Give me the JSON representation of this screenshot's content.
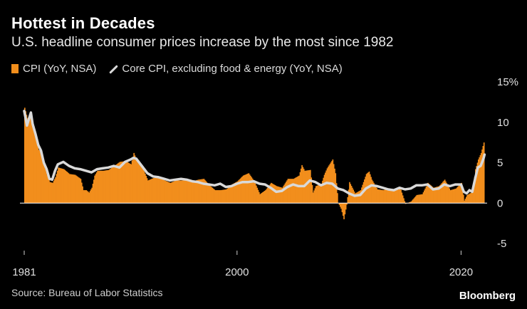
{
  "title": "Hottest in Decades",
  "subtitle": "U.S. headline consumer prices increase by the most since 1982",
  "legend": {
    "cpi": "CPI (YoY, NSA)",
    "core": "Core CPI, excluding food & energy (YoY, NSA)"
  },
  "source": "Source: Bureau of Labor Statistics",
  "brand": "Bloomberg",
  "colors": {
    "cpi": "#f28e1c",
    "core": "#d9d9d9",
    "background": "#000000",
    "axis": "#ffffff"
  },
  "chart_data": {
    "type": "bar",
    "x_unit": "year",
    "xlim": [
      1981,
      2022.2
    ],
    "ylim": [
      -5,
      15
    ],
    "y_ticks": [
      15,
      10,
      5,
      0,
      -5
    ],
    "y_tick_labels": [
      "15%",
      "10",
      "5",
      "0",
      "-5"
    ],
    "x_ticks": [
      1981,
      2000,
      2020
    ],
    "x_tick_labels": [
      "1981",
      "2000",
      "2020"
    ],
    "y_axis_side": "right",
    "grid": false,
    "series": [
      {
        "name": "CPI (YoY, NSA)",
        "type": "bar",
        "points": [
          [
            1981.0,
            11.8
          ],
          [
            1981.25,
            10.5
          ],
          [
            1981.5,
            10.8
          ],
          [
            1981.75,
            9.6
          ],
          [
            1982.0,
            8.4
          ],
          [
            1982.25,
            6.6
          ],
          [
            1982.5,
            6.3
          ],
          [
            1982.75,
            4.6
          ],
          [
            1983.0,
            3.5
          ],
          [
            1983.25,
            2.6
          ],
          [
            1983.5,
            2.5
          ],
          [
            1983.75,
            3.2
          ],
          [
            1984.0,
            4.4
          ],
          [
            1984.5,
            4.2
          ],
          [
            1985.0,
            3.6
          ],
          [
            1985.5,
            3.5
          ],
          [
            1986.0,
            3.0
          ],
          [
            1986.25,
            1.6
          ],
          [
            1986.5,
            1.6
          ],
          [
            1986.75,
            1.3
          ],
          [
            1987.0,
            1.9
          ],
          [
            1987.25,
            3.4
          ],
          [
            1987.5,
            4.0
          ],
          [
            1988.0,
            4.0
          ],
          [
            1988.5,
            4.1
          ],
          [
            1989.0,
            4.6
          ],
          [
            1989.5,
            5.1
          ],
          [
            1990.0,
            5.2
          ],
          [
            1990.5,
            4.8
          ],
          [
            1990.75,
            6.2
          ],
          [
            1991.0,
            5.3
          ],
          [
            1991.5,
            4.5
          ],
          [
            1992.0,
            2.8
          ],
          [
            1992.5,
            3.1
          ],
          [
            1993.0,
            3.2
          ],
          [
            1993.5,
            2.8
          ],
          [
            1994.0,
            2.5
          ],
          [
            1994.5,
            2.8
          ],
          [
            1995.0,
            2.8
          ],
          [
            1995.5,
            2.8
          ],
          [
            1996.0,
            2.7
          ],
          [
            1996.5,
            2.9
          ],
          [
            1997.0,
            3.0
          ],
          [
            1997.5,
            2.2
          ],
          [
            1998.0,
            1.6
          ],
          [
            1998.5,
            1.6
          ],
          [
            1999.0,
            1.7
          ],
          [
            1999.5,
            2.3
          ],
          [
            2000.0,
            2.7
          ],
          [
            2000.5,
            3.4
          ],
          [
            2001.0,
            3.7
          ],
          [
            2001.5,
            2.7
          ],
          [
            2001.75,
            1.9
          ],
          [
            2002.0,
            1.1
          ],
          [
            2002.5,
            1.6
          ],
          [
            2003.0,
            2.5
          ],
          [
            2003.5,
            2.1
          ],
          [
            2004.0,
            1.9
          ],
          [
            2004.5,
            3.0
          ],
          [
            2005.0,
            3.0
          ],
          [
            2005.5,
            3.4
          ],
          [
            2005.75,
            4.7
          ],
          [
            2006.0,
            4.0
          ],
          [
            2006.5,
            4.1
          ],
          [
            2006.75,
            1.3
          ],
          [
            2007.0,
            2.1
          ],
          [
            2007.5,
            2.4
          ],
          [
            2007.75,
            3.5
          ],
          [
            2008.0,
            4.3
          ],
          [
            2008.5,
            5.4
          ],
          [
            2008.75,
            3.7
          ],
          [
            2009.0,
            0.0
          ],
          [
            2009.25,
            -0.7
          ],
          [
            2009.5,
            -2.0
          ],
          [
            2009.75,
            -0.2
          ],
          [
            2010.0,
            2.6
          ],
          [
            2010.5,
            1.2
          ],
          [
            2011.0,
            1.6
          ],
          [
            2011.5,
            3.6
          ],
          [
            2011.75,
            3.9
          ],
          [
            2012.0,
            2.9
          ],
          [
            2012.5,
            1.7
          ],
          [
            2013.0,
            1.6
          ],
          [
            2013.5,
            1.8
          ],
          [
            2014.0,
            1.6
          ],
          [
            2014.5,
            2.0
          ],
          [
            2015.0,
            -0.1
          ],
          [
            2015.5,
            0.2
          ],
          [
            2016.0,
            1.0
          ],
          [
            2016.5,
            1.1
          ],
          [
            2017.0,
            2.5
          ],
          [
            2017.5,
            1.9
          ],
          [
            2018.0,
            2.1
          ],
          [
            2018.5,
            2.9
          ],
          [
            2019.0,
            1.6
          ],
          [
            2019.5,
            1.8
          ],
          [
            2020.0,
            2.5
          ],
          [
            2020.25,
            0.3
          ],
          [
            2020.5,
            1.0
          ],
          [
            2020.75,
            1.2
          ],
          [
            2021.0,
            1.4
          ],
          [
            2021.25,
            4.2
          ],
          [
            2021.5,
            5.4
          ],
          [
            2021.75,
            6.2
          ],
          [
            2022.0,
            7.5
          ]
        ]
      },
      {
        "name": "Core CPI, excluding food & energy (YoY, NSA)",
        "type": "line",
        "points": [
          [
            1981.0,
            11.4
          ],
          [
            1981.25,
            9.6
          ],
          [
            1981.5,
            10.8
          ],
          [
            1981.6,
            11.2
          ],
          [
            1981.75,
            9.8
          ],
          [
            1982.0,
            8.6
          ],
          [
            1982.25,
            7.2
          ],
          [
            1982.5,
            6.5
          ],
          [
            1982.75,
            5.0
          ],
          [
            1983.0,
            4.2
          ],
          [
            1983.25,
            3.0
          ],
          [
            1983.5,
            2.9
          ],
          [
            1983.75,
            4.0
          ],
          [
            1984.0,
            4.8
          ],
          [
            1984.5,
            5.1
          ],
          [
            1985.0,
            4.6
          ],
          [
            1985.5,
            4.3
          ],
          [
            1986.0,
            4.2
          ],
          [
            1986.5,
            4.0
          ],
          [
            1987.0,
            3.8
          ],
          [
            1987.5,
            4.2
          ],
          [
            1988.0,
            4.3
          ],
          [
            1988.5,
            4.4
          ],
          [
            1989.0,
            4.6
          ],
          [
            1989.5,
            4.4
          ],
          [
            1990.0,
            5.1
          ],
          [
            1990.5,
            5.4
          ],
          [
            1990.75,
            5.6
          ],
          [
            1991.0,
            5.5
          ],
          [
            1991.5,
            4.6
          ],
          [
            1992.0,
            3.7
          ],
          [
            1992.5,
            3.3
          ],
          [
            1993.0,
            3.2
          ],
          [
            1993.5,
            3.0
          ],
          [
            1994.0,
            2.8
          ],
          [
            1994.5,
            2.9
          ],
          [
            1995.0,
            3.0
          ],
          [
            1995.5,
            2.9
          ],
          [
            1996.0,
            2.7
          ],
          [
            1996.5,
            2.6
          ],
          [
            1997.0,
            2.4
          ],
          [
            1997.5,
            2.3
          ],
          [
            1998.0,
            2.2
          ],
          [
            1998.5,
            2.4
          ],
          [
            1999.0,
            2.0
          ],
          [
            1999.5,
            2.1
          ],
          [
            2000.0,
            2.4
          ],
          [
            2000.5,
            2.6
          ],
          [
            2001.0,
            2.6
          ],
          [
            2001.5,
            2.7
          ],
          [
            2002.0,
            2.4
          ],
          [
            2002.5,
            2.3
          ],
          [
            2003.0,
            1.9
          ],
          [
            2003.5,
            1.4
          ],
          [
            2004.0,
            1.5
          ],
          [
            2004.5,
            2.0
          ],
          [
            2005.0,
            2.3
          ],
          [
            2005.5,
            2.1
          ],
          [
            2006.0,
            2.1
          ],
          [
            2006.5,
            2.8
          ],
          [
            2007.0,
            2.6
          ],
          [
            2007.5,
            2.2
          ],
          [
            2008.0,
            2.5
          ],
          [
            2008.5,
            2.4
          ],
          [
            2009.0,
            1.8
          ],
          [
            2009.5,
            1.6
          ],
          [
            2010.0,
            1.2
          ],
          [
            2010.5,
            0.9
          ],
          [
            2011.0,
            1.0
          ],
          [
            2011.5,
            1.8
          ],
          [
            2012.0,
            2.2
          ],
          [
            2012.5,
            2.1
          ],
          [
            2013.0,
            1.9
          ],
          [
            2013.5,
            1.7
          ],
          [
            2014.0,
            1.6
          ],
          [
            2014.5,
            1.9
          ],
          [
            2015.0,
            1.7
          ],
          [
            2015.5,
            1.8
          ],
          [
            2016.0,
            2.2
          ],
          [
            2016.5,
            2.2
          ],
          [
            2017.0,
            2.3
          ],
          [
            2017.5,
            1.7
          ],
          [
            2018.0,
            1.8
          ],
          [
            2018.5,
            2.3
          ],
          [
            2019.0,
            2.1
          ],
          [
            2019.5,
            2.3
          ],
          [
            2020.0,
            2.3
          ],
          [
            2020.25,
            1.4
          ],
          [
            2020.5,
            1.2
          ],
          [
            2020.75,
            1.6
          ],
          [
            2021.0,
            1.4
          ],
          [
            2021.25,
            3.0
          ],
          [
            2021.5,
            4.4
          ],
          [
            2021.75,
            4.6
          ],
          [
            2022.0,
            5.5
          ],
          [
            2022.1,
            6.0
          ]
        ]
      }
    ]
  }
}
